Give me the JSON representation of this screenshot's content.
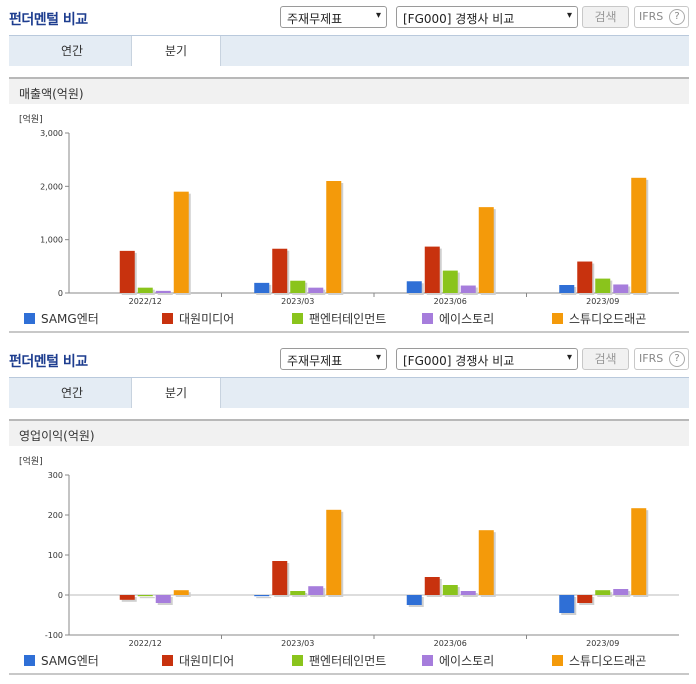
{
  "panels": [
    {
      "title": "펀더멘털 비교",
      "select_item": "주재무제표",
      "select_compare": "[FG000] 경쟁사 비교",
      "search_label": "검색",
      "ifrs_label": "IFRS",
      "help_label": "?",
      "tabs": [
        {
          "label": "연간"
        },
        {
          "label": "분기"
        }
      ],
      "section_title": "매출액(억원)"
    },
    {
      "title": "펀더멘털 비교",
      "select_item": "주재무제표",
      "select_compare": "[FG000] 경쟁사 비교",
      "search_label": "검색",
      "ifrs_label": "IFRS",
      "help_label": "?",
      "tabs": [
        {
          "label": "연간"
        },
        {
          "label": "분기"
        }
      ],
      "section_title": "영업이익(억원)"
    }
  ],
  "colors": {
    "SAMG엔터": "#2f6fd6",
    "대원미디어": "#c8320e",
    "팬엔터테인먼트": "#8ac41c",
    "에이스토리": "#a67ddc",
    "스튜디오드래곤": "#f49a0a"
  },
  "chart_data": [
    {
      "type": "bar",
      "unit_label": "[억원]",
      "categories": [
        "2022/12",
        "2023/03",
        "2023/06",
        "2023/09"
      ],
      "ylim": [
        0,
        3000
      ],
      "yticks": [
        0,
        1000,
        2000,
        3000
      ],
      "ytick_labels": [
        "0",
        "1,000",
        "2,000",
        "3,000"
      ],
      "legend_position": "bottom",
      "series": [
        {
          "name": "SAMG엔터",
          "values": [
            0,
            190,
            220,
            150
          ]
        },
        {
          "name": "대원미디어",
          "values": [
            790,
            830,
            870,
            590
          ]
        },
        {
          "name": "팬엔터테인먼트",
          "values": [
            100,
            230,
            420,
            270
          ]
        },
        {
          "name": "에이스토리",
          "values": [
            40,
            100,
            140,
            160
          ]
        },
        {
          "name": "스튜디오드래곤",
          "values": [
            1900,
            2100,
            1610,
            2160
          ]
        }
      ]
    },
    {
      "type": "bar",
      "unit_label": "[억원]",
      "categories": [
        "2022/12",
        "2023/03",
        "2023/06",
        "2023/09"
      ],
      "ylim": [
        -100,
        300
      ],
      "yticks": [
        -100,
        0,
        100,
        200,
        300
      ],
      "ytick_labels": [
        "-100",
        "0",
        "100",
        "200",
        "300"
      ],
      "legend_position": "bottom",
      "series": [
        {
          "name": "SAMG엔터",
          "values": [
            0,
            -3,
            -25,
            -45
          ]
        },
        {
          "name": "대원미디어",
          "values": [
            -12,
            85,
            45,
            -20
          ]
        },
        {
          "name": "팬엔터테인먼트",
          "values": [
            -3,
            10,
            25,
            12
          ]
        },
        {
          "name": "에이스토리",
          "values": [
            -20,
            22,
            10,
            15
          ]
        },
        {
          "name": "스튜디오드래곤",
          "values": [
            12,
            213,
            162,
            217
          ]
        }
      ]
    }
  ]
}
